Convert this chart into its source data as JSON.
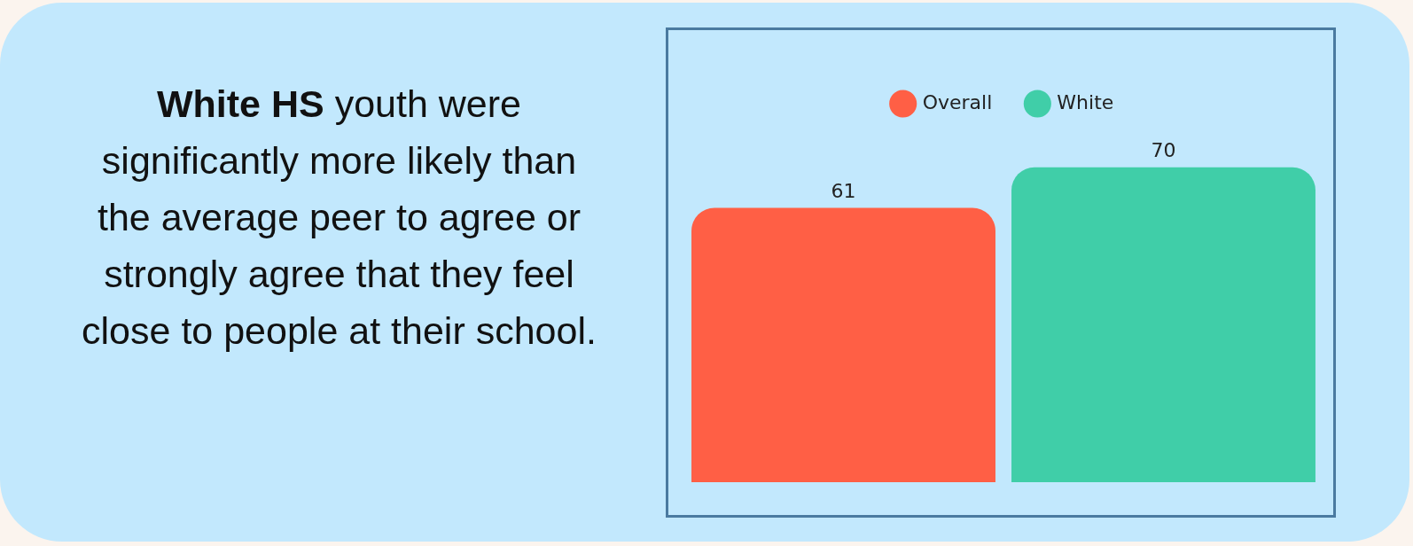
{
  "chart_data": {
    "type": "bar",
    "title": "White HS",
    "subtitle": "youth were significantly more likely than the average peer to agree or strongly agree that they feel close to people at their school.",
    "categories": [
      null
    ],
    "series": [
      {
        "name": "Overall",
        "color": "#ff5f45",
        "values": [
          61
        ]
      },
      {
        "name": "White",
        "color": "#40cea8",
        "values": [
          70
        ]
      }
    ],
    "data_labels": true,
    "legend": "top"
  }
}
